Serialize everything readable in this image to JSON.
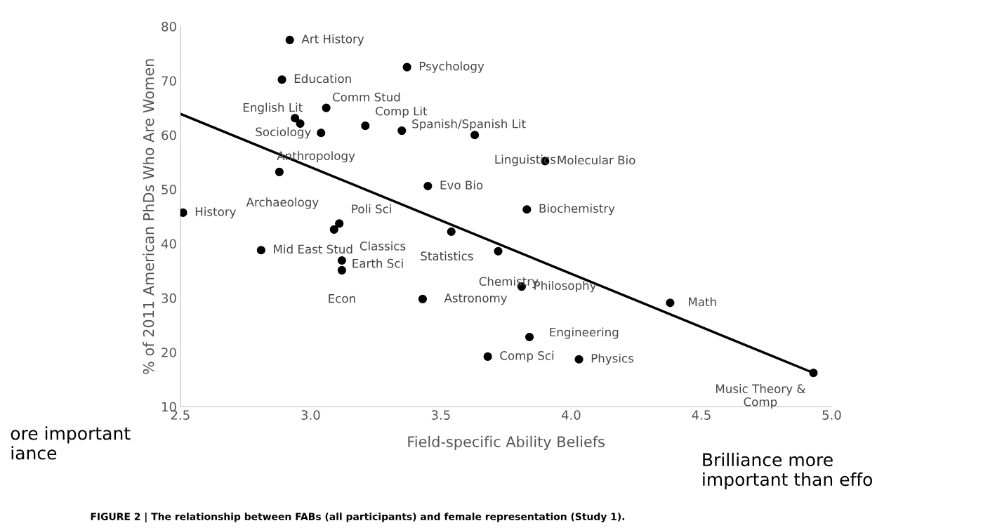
{
  "chart_data": {
    "type": "scatter",
    "xlabel": "Field-specific Ability Beliefs",
    "ylabel": "% of 2011 American PhDs Who Are Women",
    "xlim": [
      2.5,
      5.0
    ],
    "xticks": [
      {
        "value": 2.5,
        "label": "2.5"
      },
      {
        "value": 3.0,
        "label": "3.0"
      },
      {
        "value": 3.5,
        "label": "3.5"
      },
      {
        "value": 4.0,
        "label": "4.0"
      },
      {
        "value": 4.5,
        "label": "4.5"
      },
      {
        "value": 5.0,
        "label": "5.0"
      }
    ],
    "ylim": [
      10,
      80
    ],
    "yticks": [
      10,
      20,
      30,
      40,
      50,
      60,
      70,
      80
    ],
    "grid": false,
    "series": [
      {
        "marker": "circle",
        "color": "#000000",
        "x": [
          2.92,
          3.37,
          2.89,
          3.06,
          2.94,
          2.96,
          3.04,
          3.21,
          3.35,
          3.63,
          3.9,
          2.88,
          3.45,
          2.51,
          3.83,
          3.11,
          3.09,
          3.54,
          2.81,
          3.72,
          3.12,
          3.12,
          3.43,
          3.81,
          4.38,
          3.84,
          3.68,
          4.03,
          4.93
        ],
        "values": [
          77.5,
          72.5,
          70.2,
          65.0,
          63.1,
          62.1,
          60.4,
          61.7,
          60.8,
          60.0,
          55.2,
          53.2,
          50.6,
          45.7,
          46.3,
          43.7,
          42.6,
          42.2,
          38.8,
          38.6,
          36.9,
          35.1,
          29.8,
          32.1,
          29.1,
          22.8,
          19.2,
          18.7,
          16.2
        ]
      },
      {
        "type": "line",
        "color": "#000000",
        "x": [
          2.5,
          4.93
        ],
        "values": [
          63.9,
          16.2
        ]
      }
    ],
    "annotations": [
      {
        "text": "Art History",
        "x": 2.92,
        "y": 77.5
      },
      {
        "text": "Psychology",
        "x": 3.37,
        "y": 72.5
      },
      {
        "text": "Education",
        "x": 2.89,
        "y": 70.2
      },
      {
        "text": "Comm Stud",
        "x": 3.06,
        "y": 65.0
      },
      {
        "text": "English Lit",
        "x": 2.94,
        "y": 63.1
      },
      {
        "text": "Sociology",
        "x": 3.04,
        "y": 60.4
      },
      {
        "text": "Comp Lit",
        "x": 3.21,
        "y": 61.7
      },
      {
        "text": "Spanish/Spanish Lit",
        "x": 3.35,
        "y": 60.8
      },
      {
        "text": "Anthropology",
        "x": 2.96,
        "y": 62.1
      },
      {
        "text": "Linguistics",
        "x": 3.63,
        "y": 60.0
      },
      {
        "text": "Molecular Bio",
        "x": 3.9,
        "y": 55.2
      },
      {
        "text": "Archaeology",
        "x": 2.88,
        "y": 53.2
      },
      {
        "text": "Evo Bio",
        "x": 3.45,
        "y": 50.6
      },
      {
        "text": "History",
        "x": 2.51,
        "y": 45.7
      },
      {
        "text": "Biochemistry",
        "x": 3.83,
        "y": 46.3
      },
      {
        "text": "Poli Sci",
        "x": 3.11,
        "y": 43.7
      },
      {
        "text": "Classics",
        "x": 3.09,
        "y": 42.6
      },
      {
        "text": "Statistics",
        "x": 3.54,
        "y": 42.2
      },
      {
        "text": "Mid East Stud",
        "x": 2.81,
        "y": 38.8
      },
      {
        "text": "Chemistry",
        "x": 3.72,
        "y": 38.6
      },
      {
        "text": "Earth Sci",
        "x": 3.12,
        "y": 36.9
      },
      {
        "text": "Econ",
        "x": 3.12,
        "y": 35.1
      },
      {
        "text": "Astronomy",
        "x": 3.43,
        "y": 29.8
      },
      {
        "text": "Philosophy",
        "x": 3.81,
        "y": 32.1
      },
      {
        "text": "Math",
        "x": 4.38,
        "y": 29.1
      },
      {
        "text": "Engineering",
        "x": 3.84,
        "y": 22.8
      },
      {
        "text": "Comp Sci",
        "x": 3.68,
        "y": 19.2
      },
      {
        "text": "Physics",
        "x": 4.03,
        "y": 18.7
      },
      {
        "text": "Music Theory &\nComp",
        "x": 4.93,
        "y": 16.2
      },
      "ore important\niance",
      "Brilliance more\nimportant than effo",
      "FIGURE 2 | The relationship between FABs (all participants) and female representation (Study 1)."
    ]
  }
}
